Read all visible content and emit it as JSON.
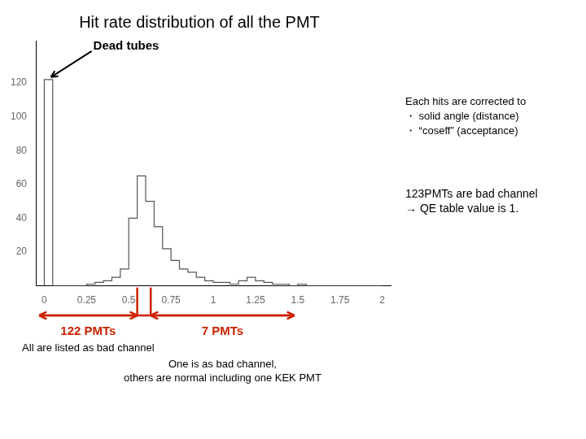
{
  "chart_data": {
    "type": "histogram",
    "title": "Hit rate distribution of all the PMT",
    "bins": [
      0,
      0.05,
      0.1,
      0.15,
      0.2,
      0.25,
      0.3,
      0.35,
      0.4,
      0.45,
      0.5,
      0.55,
      0.6,
      0.65,
      0.7,
      0.75,
      0.8,
      0.85,
      0.9,
      0.95,
      1.0,
      1.05,
      1.1,
      1.15,
      1.2,
      1.25,
      1.3,
      1.35,
      1.4,
      1.45,
      1.5,
      1.55,
      1.6,
      1.7,
      1.8,
      1.9,
      2.0
    ],
    "values": [
      122,
      0,
      0,
      0,
      0,
      1,
      2,
      3,
      5,
      10,
      40,
      65,
      50,
      35,
      22,
      15,
      10,
      8,
      5,
      3,
      2,
      2,
      1,
      3,
      5,
      3,
      2,
      1,
      1,
      0,
      1,
      0,
      0,
      0,
      0,
      0
    ],
    "color": "#555555",
    "xlim": [
      -0.05,
      2.05
    ],
    "ylim": [
      0,
      145
    ],
    "xticks": [
      0,
      0.25,
      0.5,
      0.75,
      1,
      1.25,
      1.5,
      1.75,
      2
    ],
    "yticks": [
      20,
      40,
      60,
      80,
      100,
      120
    ],
    "grid": false,
    "annotations": [
      "Dead tubes",
      "Each hits are corrected to\n・ solid angle (distance)\n・ “coseff” (acceptance)",
      "123PMTs are bad channel\n→ QE table value is 1."
    ],
    "brackets": [
      {
        "label": "122 PMTs",
        "text": "All are listed as bad channel",
        "x": [
          -0.03,
          0.55
        ],
        "color": "#cc2200"
      },
      {
        "label": "7 PMTs",
        "text": "One is as bad channel,\nothers are normal including one KEK PMT",
        "x": [
          0.63,
          1.48
        ],
        "color": "#cc2200"
      }
    ]
  }
}
